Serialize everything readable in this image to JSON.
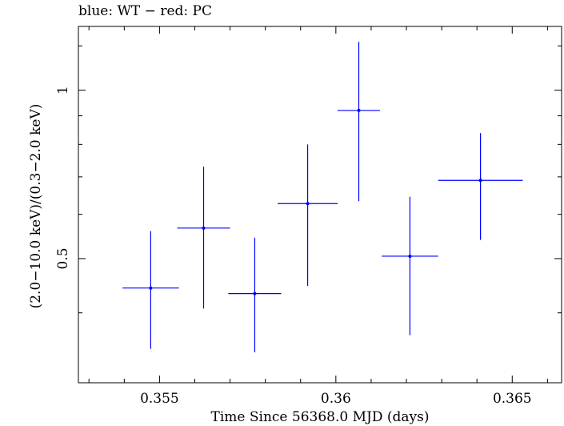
{
  "chart_data": {
    "type": "scatter",
    "title": "blue: WT − red: PC",
    "xlabel": "Time Since 56368.0 MJD (days)",
    "ylabel": "(2.0−10.0 keV)/(0.3−2.0 keV)",
    "xlim": [
      0.3527,
      0.3664
    ],
    "ylim": [
      0.3,
      1.3
    ],
    "y_scale": "log",
    "x_ticks": [
      {
        "value": 0.355,
        "label": "0.355"
      },
      {
        "value": 0.36,
        "label": "0.36"
      },
      {
        "value": 0.365,
        "label": "0.365"
      }
    ],
    "y_ticks": [
      {
        "value": 0.5,
        "label": "0.5"
      },
      {
        "value": 1,
        "label": "1"
      }
    ],
    "grid": false,
    "series": [
      {
        "color": "#0000ff",
        "points": [
          {
            "x": 0.35475,
            "y": 0.443,
            "xerr": 0.0008,
            "ylo": 0.345,
            "yhi": 0.56
          },
          {
            "x": 0.35625,
            "y": 0.567,
            "xerr": 0.00075,
            "ylo": 0.407,
            "yhi": 0.73
          },
          {
            "x": 0.3577,
            "y": 0.433,
            "xerr": 0.00075,
            "ylo": 0.34,
            "yhi": 0.545
          },
          {
            "x": 0.3592,
            "y": 0.627,
            "xerr": 0.00085,
            "ylo": 0.447,
            "yhi": 0.8
          },
          {
            "x": 0.36065,
            "y": 0.92,
            "xerr": 0.0006,
            "ylo": 0.633,
            "yhi": 1.22
          },
          {
            "x": 0.3621,
            "y": 0.505,
            "xerr": 0.0008,
            "ylo": 0.365,
            "yhi": 0.645
          },
          {
            "x": 0.3641,
            "y": 0.69,
            "xerr": 0.0012,
            "ylo": 0.54,
            "yhi": 0.838
          }
        ]
      }
    ]
  }
}
